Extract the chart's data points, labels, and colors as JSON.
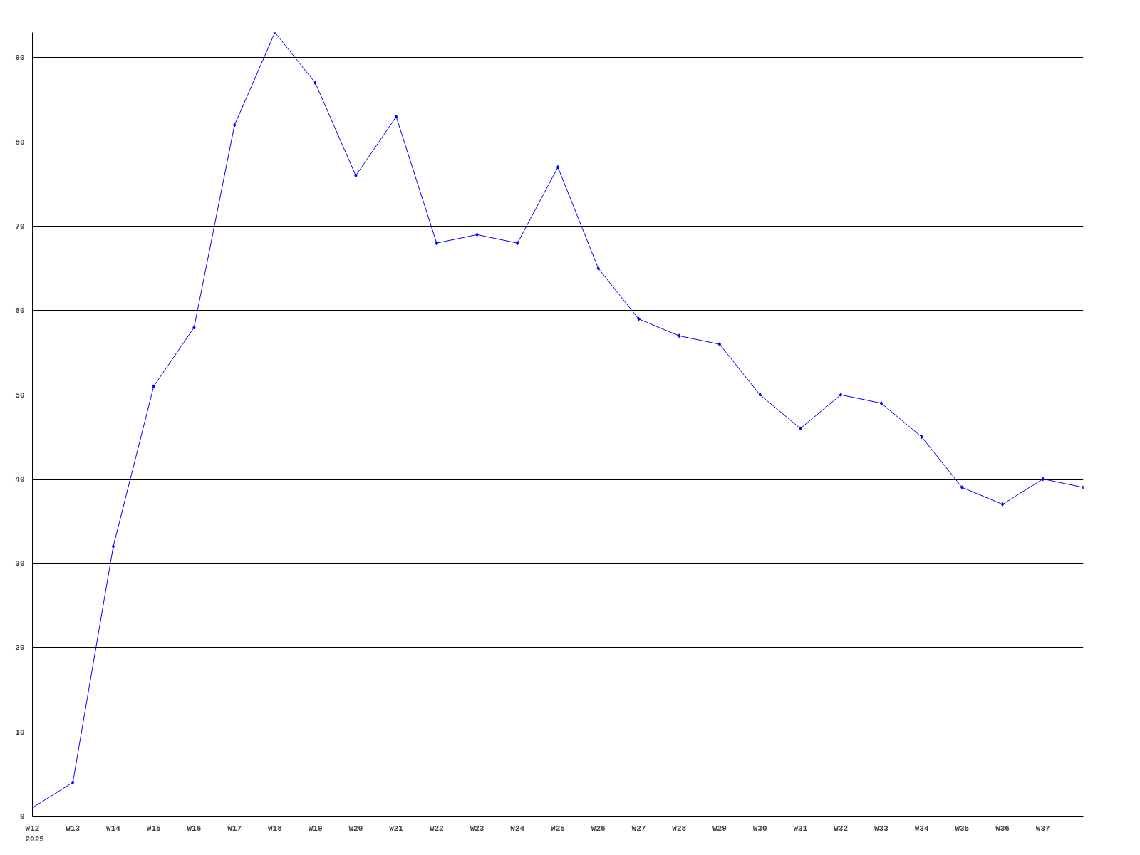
{
  "chart_data": {
    "type": "line",
    "categories": [
      "W12",
      "W13",
      "W14",
      "W15",
      "W16",
      "W17",
      "W18",
      "W19",
      "W20",
      "W21",
      "W22",
      "W23",
      "W24",
      "W25",
      "W26",
      "W27",
      "W28",
      "W29",
      "W30",
      "W31",
      "W32",
      "W33",
      "W34",
      "W35",
      "W36",
      "W37",
      null
    ],
    "series": [
      {
        "color": "#0000ff",
        "values": [
          1,
          4,
          32,
          51,
          58,
          82,
          93,
          87,
          76,
          83,
          68,
          69,
          68,
          77,
          65,
          59,
          57,
          56,
          50,
          46,
          50,
          49,
          45,
          39,
          37,
          40,
          39
        ]
      }
    ],
    "ylim": [
      0,
      93
    ],
    "yticks": [
      0,
      10,
      20,
      30,
      40,
      50,
      60,
      70,
      80,
      90
    ],
    "grid": "y",
    "marker": "diamond",
    "line_style": "solid",
    "annotations": [
      "2025"
    ]
  }
}
